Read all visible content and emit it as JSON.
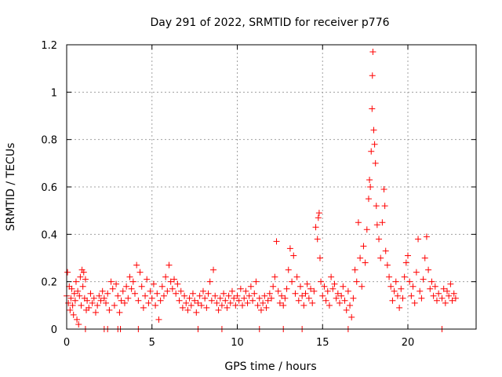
{
  "chart_data": {
    "type": "scatter",
    "title": "Day 291 of 2022, SRMTID for receiver p776",
    "xlabel": "GPS time / hours",
    "ylabel": "SRMTID / TECUs",
    "xlim": [
      0,
      24
    ],
    "ylim": [
      0,
      1.2
    ],
    "xticks": [
      0,
      5,
      10,
      15,
      20
    ],
    "xtick_labels": [
      "0",
      "5",
      "10",
      "15",
      "20"
    ],
    "yticks": [
      0,
      0.2,
      0.4,
      0.6,
      0.8,
      1.0,
      1.2
    ],
    "ytick_labels": [
      "0",
      "0.2",
      "0.4",
      "0.6",
      "0.8",
      "1",
      "1.2"
    ],
    "grid": true,
    "marker": "plus",
    "color": "#ff0000",
    "series": [
      {
        "name": "SRMTID",
        "points": [
          [
            0.0,
            0.14
          ],
          [
            0.05,
            0.24
          ],
          [
            0.1,
            0.11
          ],
          [
            0.15,
            0.18
          ],
          [
            0.2,
            0.08
          ],
          [
            0.25,
            0.13
          ],
          [
            0.3,
            0.17
          ],
          [
            0.35,
            0.1
          ],
          [
            0.4,
            0.06
          ],
          [
            0.45,
            0.15
          ],
          [
            0.5,
            0.12
          ],
          [
            0.55,
            0.2
          ],
          [
            0.6,
            0.04
          ],
          [
            0.65,
            0.16
          ],
          [
            0.7,
            0.02
          ],
          [
            0.75,
            0.14
          ],
          [
            0.8,
            0.22
          ],
          [
            0.85,
            0.1
          ],
          [
            0.9,
            0.25
          ],
          [
            0.95,
            0.18
          ],
          [
            1.0,
            0.24
          ],
          [
            1.05,
            0.13
          ],
          [
            1.1,
            0.21
          ],
          [
            1.15,
            0.08
          ],
          [
            1.2,
            0.12
          ],
          [
            1.3,
            0.09
          ],
          [
            1.4,
            0.15
          ],
          [
            1.5,
            0.11
          ],
          [
            1.6,
            0.13
          ],
          [
            1.7,
            0.07
          ],
          [
            1.8,
            0.1
          ],
          [
            1.9,
            0.14
          ],
          [
            2.0,
            0.12
          ],
          [
            2.1,
            0.16
          ],
          [
            2.2,
            0.13
          ],
          [
            2.3,
            0.11
          ],
          [
            2.4,
            0.15
          ],
          [
            2.5,
            0.08
          ],
          [
            2.6,
            0.2
          ],
          [
            2.7,
            0.17
          ],
          [
            2.8,
            0.1
          ],
          [
            2.9,
            0.19
          ],
          [
            3.0,
            0.14
          ],
          [
            3.1,
            0.07
          ],
          [
            3.2,
            0.12
          ],
          [
            3.3,
            0.16
          ],
          [
            3.4,
            0.11
          ],
          [
            3.5,
            0.18
          ],
          [
            3.6,
            0.13
          ],
          [
            3.7,
            0.22
          ],
          [
            3.8,
            0.17
          ],
          [
            3.9,
            0.2
          ],
          [
            4.0,
            0.15
          ],
          [
            4.1,
            0.27
          ],
          [
            4.2,
            0.12
          ],
          [
            4.3,
            0.24
          ],
          [
            4.4,
            0.18
          ],
          [
            4.5,
            0.09
          ],
          [
            4.6,
            0.14
          ],
          [
            4.7,
            0.21
          ],
          [
            4.8,
            0.11
          ],
          [
            4.9,
            0.16
          ],
          [
            5.0,
            0.13
          ],
          [
            5.1,
            0.19
          ],
          [
            5.2,
            0.1
          ],
          [
            5.3,
            0.15
          ],
          [
            5.4,
            0.04
          ],
          [
            5.5,
            0.12
          ],
          [
            5.6,
            0.18
          ],
          [
            5.7,
            0.14
          ],
          [
            5.8,
            0.22
          ],
          [
            5.9,
            0.16
          ],
          [
            6.0,
            0.27
          ],
          [
            6.1,
            0.2
          ],
          [
            6.2,
            0.17
          ],
          [
            6.3,
            0.21
          ],
          [
            6.4,
            0.15
          ],
          [
            6.5,
            0.19
          ],
          [
            6.6,
            0.12
          ],
          [
            6.7,
            0.16
          ],
          [
            6.8,
            0.09
          ],
          [
            6.9,
            0.14
          ],
          [
            7.0,
            0.11
          ],
          [
            7.1,
            0.08
          ],
          [
            7.2,
            0.13
          ],
          [
            7.3,
            0.1
          ],
          [
            7.4,
            0.15
          ],
          [
            7.5,
            0.12
          ],
          [
            7.6,
            0.07
          ],
          [
            7.7,
            0.11
          ],
          [
            7.8,
            0.14
          ],
          [
            7.9,
            0.1
          ],
          [
            8.0,
            0.16
          ],
          [
            8.1,
            0.13
          ],
          [
            8.2,
            0.09
          ],
          [
            8.3,
            0.15
          ],
          [
            8.4,
            0.2
          ],
          [
            8.5,
            0.12
          ],
          [
            8.6,
            0.25
          ],
          [
            8.7,
            0.14
          ],
          [
            8.8,
            0.11
          ],
          [
            8.9,
            0.08
          ],
          [
            9.0,
            0.13
          ],
          [
            9.1,
            0.1
          ],
          [
            9.2,
            0.15
          ],
          [
            9.3,
            0.12
          ],
          [
            9.4,
            0.09
          ],
          [
            9.5,
            0.14
          ],
          [
            9.6,
            0.11
          ],
          [
            9.7,
            0.16
          ],
          [
            9.8,
            0.13
          ],
          [
            9.9,
            0.1
          ],
          [
            10.0,
            0.14
          ],
          [
            10.1,
            0.12
          ],
          [
            10.2,
            0.17
          ],
          [
            10.3,
            0.1
          ],
          [
            10.4,
            0.13
          ],
          [
            10.5,
            0.16
          ],
          [
            10.6,
            0.11
          ],
          [
            10.7,
            0.14
          ],
          [
            10.8,
            0.18
          ],
          [
            10.9,
            0.12
          ],
          [
            11.0,
            0.15
          ],
          [
            11.1,
            0.2
          ],
          [
            11.2,
            0.1
          ],
          [
            11.3,
            0.13
          ],
          [
            11.4,
            0.08
          ],
          [
            11.5,
            0.11
          ],
          [
            11.6,
            0.14
          ],
          [
            11.7,
            0.09
          ],
          [
            11.8,
            0.12
          ],
          [
            11.9,
            0.15
          ],
          [
            12.0,
            0.13
          ],
          [
            12.1,
            0.18
          ],
          [
            12.2,
            0.22
          ],
          [
            12.3,
            0.37
          ],
          [
            12.4,
            0.16
          ],
          [
            12.5,
            0.11
          ],
          [
            12.6,
            0.14
          ],
          [
            12.7,
            0.1
          ],
          [
            12.8,
            0.13
          ],
          [
            12.9,
            0.17
          ],
          [
            13.0,
            0.25
          ],
          [
            13.1,
            0.34
          ],
          [
            13.2,
            0.2
          ],
          [
            13.3,
            0.31
          ],
          [
            13.4,
            0.15
          ],
          [
            13.5,
            0.22
          ],
          [
            13.6,
            0.12
          ],
          [
            13.7,
            0.18
          ],
          [
            13.8,
            0.14
          ],
          [
            13.9,
            0.1
          ],
          [
            14.0,
            0.15
          ],
          [
            14.1,
            0.19
          ],
          [
            14.2,
            0.13
          ],
          [
            14.3,
            0.17
          ],
          [
            14.4,
            0.11
          ],
          [
            14.5,
            0.16
          ],
          [
            14.6,
            0.43
          ],
          [
            14.7,
            0.38
          ],
          [
            14.75,
            0.47
          ],
          [
            14.8,
            0.49
          ],
          [
            14.85,
            0.3
          ],
          [
            14.9,
            0.2
          ],
          [
            15.0,
            0.14
          ],
          [
            15.1,
            0.18
          ],
          [
            15.2,
            0.12
          ],
          [
            15.3,
            0.16
          ],
          [
            15.4,
            0.1
          ],
          [
            15.5,
            0.22
          ],
          [
            15.6,
            0.17
          ],
          [
            15.7,
            0.19
          ],
          [
            15.8,
            0.13
          ],
          [
            15.9,
            0.15
          ],
          [
            16.0,
            0.11
          ],
          [
            16.1,
            0.14
          ],
          [
            16.2,
            0.18
          ],
          [
            16.3,
            0.12
          ],
          [
            16.4,
            0.08
          ],
          [
            16.5,
            0.16
          ],
          [
            16.6,
            0.1
          ],
          [
            16.7,
            0.05
          ],
          [
            16.8,
            0.13
          ],
          [
            16.9,
            0.25
          ],
          [
            17.0,
            0.2
          ],
          [
            17.1,
            0.45
          ],
          [
            17.2,
            0.3
          ],
          [
            17.3,
            0.18
          ],
          [
            17.4,
            0.35
          ],
          [
            17.5,
            0.28
          ],
          [
            17.6,
            0.42
          ],
          [
            17.7,
            0.55
          ],
          [
            17.75,
            0.63
          ],
          [
            17.8,
            0.6
          ],
          [
            17.85,
            0.75
          ],
          [
            17.9,
            0.93
          ],
          [
            17.92,
            1.07
          ],
          [
            17.95,
            1.17
          ],
          [
            18.0,
            0.84
          ],
          [
            18.05,
            0.78
          ],
          [
            18.1,
            0.7
          ],
          [
            18.15,
            0.52
          ],
          [
            18.2,
            0.44
          ],
          [
            18.3,
            0.38
          ],
          [
            18.4,
            0.3
          ],
          [
            18.5,
            0.45
          ],
          [
            18.6,
            0.59
          ],
          [
            18.65,
            0.52
          ],
          [
            18.7,
            0.33
          ],
          [
            18.8,
            0.27
          ],
          [
            18.9,
            0.22
          ],
          [
            19.0,
            0.18
          ],
          [
            19.1,
            0.12
          ],
          [
            19.2,
            0.16
          ],
          [
            19.3,
            0.2
          ],
          [
            19.4,
            0.14
          ],
          [
            19.5,
            0.09
          ],
          [
            19.6,
            0.17
          ],
          [
            19.7,
            0.13
          ],
          [
            19.8,
            0.22
          ],
          [
            19.9,
            0.28
          ],
          [
            20.0,
            0.31
          ],
          [
            20.1,
            0.2
          ],
          [
            20.2,
            0.14
          ],
          [
            20.3,
            0.18
          ],
          [
            20.4,
            0.11
          ],
          [
            20.5,
            0.24
          ],
          [
            20.6,
            0.38
          ],
          [
            20.7,
            0.16
          ],
          [
            20.8,
            0.13
          ],
          [
            20.9,
            0.21
          ],
          [
            21.0,
            0.3
          ],
          [
            21.1,
            0.39
          ],
          [
            21.2,
            0.25
          ],
          [
            21.3,
            0.17
          ],
          [
            21.4,
            0.2
          ],
          [
            21.5,
            0.14
          ],
          [
            21.6,
            0.18
          ],
          [
            21.7,
            0.12
          ],
          [
            21.8,
            0.15
          ],
          [
            22.0,
            0.13
          ],
          [
            22.1,
            0.17
          ],
          [
            22.2,
            0.11
          ],
          [
            22.3,
            0.16
          ],
          [
            22.4,
            0.14
          ],
          [
            22.5,
            0.19
          ],
          [
            22.6,
            0.12
          ],
          [
            22.7,
            0.15
          ],
          [
            22.8,
            0.13
          ],
          [
            1.1,
            0.0
          ],
          [
            2.2,
            0.0
          ],
          [
            2.4,
            0.0
          ],
          [
            3.0,
            0.0
          ],
          [
            3.15,
            0.0
          ],
          [
            4.2,
            0.0
          ],
          [
            7.7,
            0.0
          ],
          [
            9.1,
            0.0
          ],
          [
            11.3,
            0.0
          ],
          [
            12.7,
            0.0
          ],
          [
            13.8,
            0.0
          ],
          [
            16.5,
            0.0
          ],
          [
            22.0,
            0.0
          ]
        ]
      }
    ]
  }
}
